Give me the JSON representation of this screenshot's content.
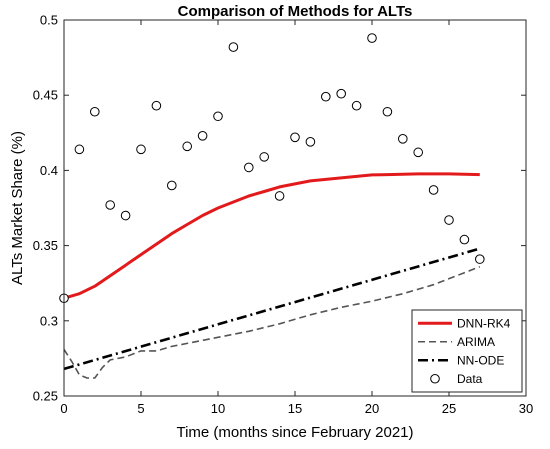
{
  "chart_data": {
    "type": "line",
    "title": "Comparison of Methods for ALTs",
    "xlabel": "Time (months since February 2021)",
    "ylabel": "ALTs Market Share (%)",
    "xlim": [
      0,
      30
    ],
    "ylim": [
      0.25,
      0.5
    ],
    "xticks": [
      0,
      5,
      10,
      15,
      20,
      25,
      30
    ],
    "yticks": [
      0.25,
      0.3,
      0.35,
      0.4,
      0.45,
      0.5
    ],
    "xtick_labels": [
      "0",
      "5",
      "10",
      "15",
      "20",
      "25",
      "30"
    ],
    "ytick_labels": [
      "0.25",
      "0.3",
      "0.35",
      "0.4",
      "0.45",
      "0.5"
    ],
    "grid": false,
    "legend_position": "bottom-right",
    "series": [
      {
        "name": "DNN-RK4",
        "style": "solid",
        "color": "#e31a1c",
        "x": [
          0,
          1,
          2,
          3,
          4,
          5,
          6,
          7,
          8,
          9,
          10,
          11,
          12,
          13,
          14,
          15,
          16,
          17,
          18,
          19,
          20,
          21,
          22,
          23,
          24,
          25,
          26,
          27
        ],
        "y": [
          0.315,
          0.318,
          0.323,
          0.33,
          0.337,
          0.344,
          0.351,
          0.358,
          0.364,
          0.37,
          0.375,
          0.379,
          0.383,
          0.386,
          0.389,
          0.391,
          0.393,
          0.394,
          0.395,
          0.396,
          0.397,
          0.3972,
          0.3975,
          0.3977,
          0.3977,
          0.3977,
          0.3975,
          0.3972
        ]
      },
      {
        "name": "ARIMA",
        "style": "dashed",
        "color": "#555555",
        "x": [
          0,
          0.5,
          1,
          1.5,
          2,
          2.5,
          3,
          4,
          5,
          6,
          7,
          8,
          10,
          12,
          14,
          16,
          18,
          20,
          22,
          24,
          26,
          27
        ],
        "y": [
          0.281,
          0.273,
          0.264,
          0.262,
          0.262,
          0.269,
          0.274,
          0.276,
          0.28,
          0.28,
          0.283,
          0.285,
          0.289,
          0.293,
          0.298,
          0.304,
          0.309,
          0.313,
          0.318,
          0.324,
          0.332,
          0.336
        ]
      },
      {
        "name": "NN-ODE",
        "style": "dashdot",
        "color": "#000000",
        "x": [
          0,
          27
        ],
        "y": [
          0.268,
          0.348
        ]
      },
      {
        "name": "Data",
        "style": "markers",
        "color": "#000000",
        "x": [
          0,
          1,
          2,
          3,
          4,
          5,
          6,
          7,
          8,
          9,
          10,
          11,
          12,
          13,
          14,
          15,
          16,
          17,
          18,
          19,
          20,
          21,
          22,
          23,
          24,
          25,
          26,
          27
        ],
        "y": [
          0.315,
          0.414,
          0.439,
          0.377,
          0.37,
          0.414,
          0.443,
          0.39,
          0.416,
          0.423,
          0.436,
          0.482,
          0.402,
          0.409,
          0.383,
          0.422,
          0.419,
          0.449,
          0.451,
          0.443,
          0.488,
          0.439,
          0.421,
          0.412,
          0.387,
          0.367,
          0.354,
          0.341
        ]
      }
    ]
  }
}
